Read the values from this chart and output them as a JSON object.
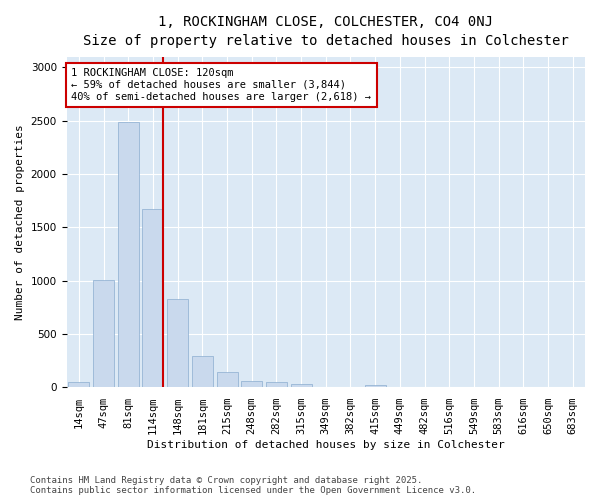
{
  "title_line1": "1, ROCKINGHAM CLOSE, COLCHESTER, CO4 0NJ",
  "title_line2": "Size of property relative to detached houses in Colchester",
  "xlabel": "Distribution of detached houses by size in Colchester",
  "ylabel": "Number of detached properties",
  "bar_labels": [
    "14sqm",
    "47sqm",
    "81sqm",
    "114sqm",
    "148sqm",
    "181sqm",
    "215sqm",
    "248sqm",
    "282sqm",
    "315sqm",
    "349sqm",
    "382sqm",
    "415sqm",
    "449sqm",
    "482sqm",
    "516sqm",
    "549sqm",
    "583sqm",
    "616sqm",
    "650sqm",
    "683sqm"
  ],
  "bar_values": [
    50,
    1010,
    2490,
    1670,
    830,
    295,
    145,
    55,
    45,
    30,
    5,
    0,
    20,
    0,
    0,
    0,
    0,
    0,
    0,
    0,
    0
  ],
  "bar_color": "#c9d9ed",
  "bar_edge_color": "#8badd0",
  "vline_color": "#cc0000",
  "vline_x_index": 3,
  "annotation_text": "1 ROCKINGHAM CLOSE: 120sqm\n← 59% of detached houses are smaller (3,844)\n40% of semi-detached houses are larger (2,618) →",
  "annotation_box_color": "#ffffff",
  "annotation_box_edge": "#cc0000",
  "ylim": [
    0,
    3100
  ],
  "yticks": [
    0,
    500,
    1000,
    1500,
    2000,
    2500,
    3000
  ],
  "figure_bg_color": "#ffffff",
  "plot_bg_color": "#dce9f5",
  "grid_color": "#ffffff",
  "footer_text": "Contains HM Land Registry data © Crown copyright and database right 2025.\nContains public sector information licensed under the Open Government Licence v3.0.",
  "title_fontsize": 10,
  "subtitle_fontsize": 9,
  "axis_label_fontsize": 8,
  "tick_fontsize": 7.5,
  "annotation_fontsize": 7.5,
  "footer_fontsize": 6.5,
  "ylabel_text": "Number of detached properties"
}
